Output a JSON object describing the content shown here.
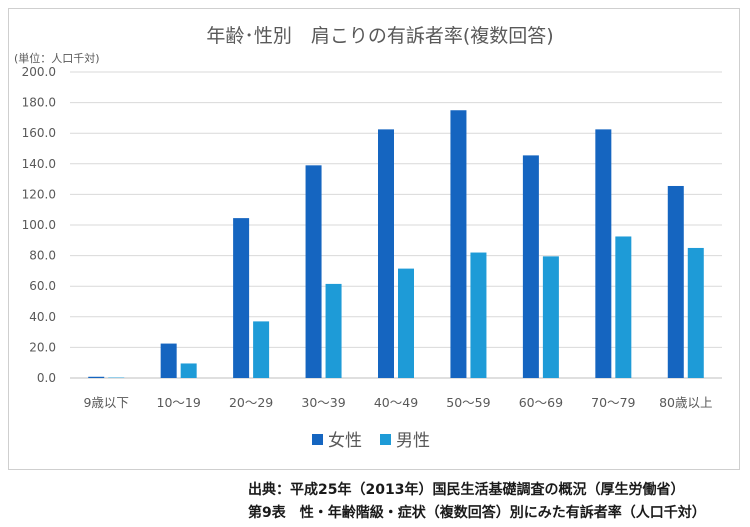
{
  "chart_data": {
    "type": "bar",
    "title": "年齢･性別　肩こりの有訴者率(複数回答)",
    "unit_label": "(単位：人口千対)",
    "categories": [
      "9歳以下",
      "10～19",
      "20～29",
      "30～39",
      "40～49",
      "50～59",
      "60～69",
      "70～79",
      "80歳以上"
    ],
    "series": [
      {
        "name": "女性",
        "color": "#1565c0",
        "values": [
          0.8,
          22.5,
          104.5,
          139.0,
          162.5,
          175.0,
          145.5,
          162.5,
          125.5
        ]
      },
      {
        "name": "男性",
        "color": "#1e9bd7",
        "values": [
          0.3,
          9.5,
          37.0,
          61.5,
          71.5,
          82.0,
          79.5,
          92.5,
          85.0
        ]
      }
    ],
    "ylim": [
      0,
      200
    ],
    "yticks": [
      "200.0",
      "180.0",
      "160.0",
      "140.0",
      "120.0",
      "100.0",
      "80.0",
      "60.0",
      "40.0",
      "20.0",
      "0.0"
    ],
    "ytick_values": [
      200,
      180,
      160,
      140,
      120,
      100,
      80,
      60,
      40,
      20,
      0
    ],
    "grid": true,
    "legend_position": "bottom"
  },
  "footer": {
    "source": "出典：平成25年（2013年）国民生活基礎調査の概況（厚生労働省）",
    "table_ref": "第9表　性・年齢階級・症状（複数回答）別にみた有訴者率（人口千対）"
  }
}
